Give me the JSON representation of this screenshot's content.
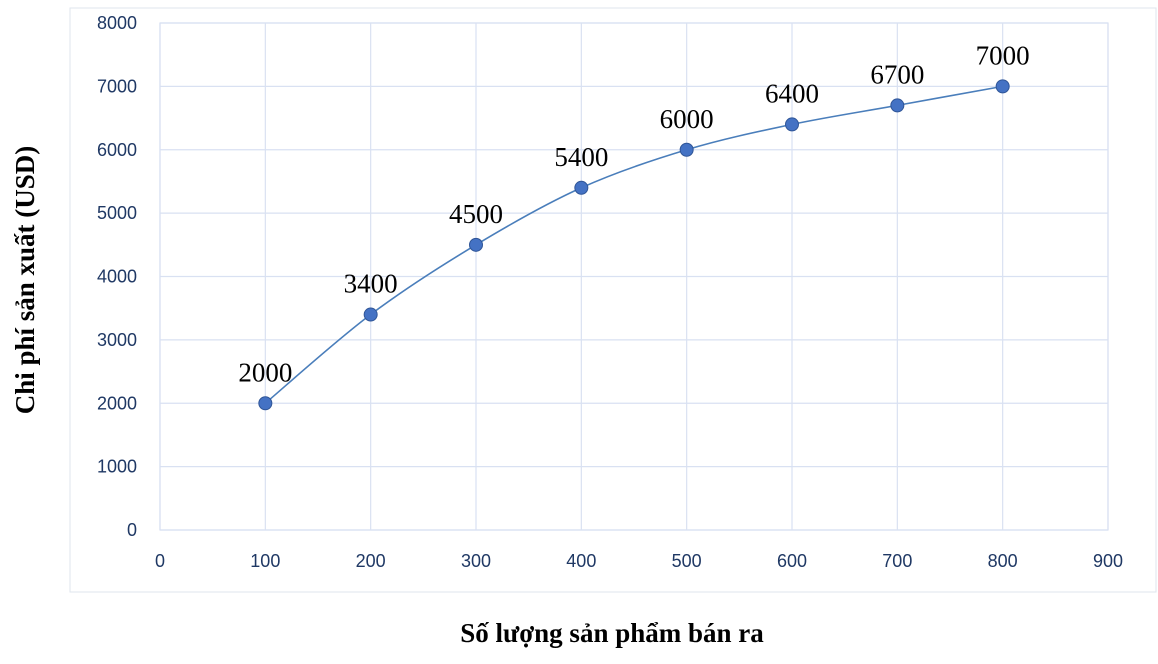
{
  "chart_data": {
    "type": "line",
    "x": [
      100,
      200,
      300,
      400,
      500,
      600,
      700,
      800
    ],
    "series": [
      {
        "values": [
          2000,
          3400,
          4500,
          5400,
          6000,
          6400,
          6700,
          7000
        ],
        "labels": [
          "2000",
          "3400",
          "4500",
          "5400",
          "6000",
          "6400",
          "6700",
          "7000"
        ]
      }
    ],
    "smooth": true,
    "xlabel": "Số lượng sản phẩm bán ra",
    "ylabel": "Chi phí sản xuất (USD)",
    "xlim": [
      0,
      900
    ],
    "ylim": [
      0,
      8000
    ],
    "xticks": [
      "0",
      "100",
      "200",
      "300",
      "400",
      "500",
      "600",
      "700",
      "800",
      "900"
    ],
    "yticks": [
      "0",
      "1000",
      "2000",
      "3000",
      "4000",
      "5000",
      "6000",
      "7000",
      "8000"
    ],
    "grid": true,
    "legend": "none",
    "colors": {
      "line": "#4a7ebb",
      "marker": "#4472c4",
      "tick_text": "#1f3864",
      "grid": "#d9e1f2"
    }
  }
}
